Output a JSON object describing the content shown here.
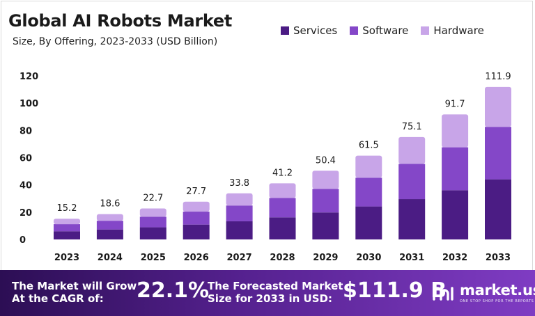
{
  "chart_data": {
    "type": "bar",
    "stacked": true,
    "title": "Global AI Robots Market",
    "subtitle": "Size, By Offering, 2023-2033 (USD Billion)",
    "categories": [
      "2023",
      "2024",
      "2025",
      "2026",
      "2027",
      "2028",
      "2029",
      "2030",
      "2031",
      "2032",
      "2033"
    ],
    "series": [
      {
        "name": "Services",
        "color": "#4b1c84",
        "values": [
          6.0,
          7.3,
          8.9,
          10.9,
          13.3,
          16.2,
          19.8,
          24.2,
          29.6,
          36.1,
          44.1
        ]
      },
      {
        "name": "Software",
        "color": "#8447c8",
        "values": [
          5.2,
          6.4,
          7.8,
          9.5,
          11.6,
          14.2,
          17.3,
          21.1,
          25.8,
          31.5,
          38.5
        ]
      },
      {
        "name": "Hardware",
        "color": "#c8a5e8",
        "values": [
          4.0,
          4.9,
          6.0,
          7.3,
          8.9,
          10.8,
          13.3,
          16.2,
          19.7,
          24.1,
          29.3
        ]
      }
    ],
    "totals": [
      "15.2",
      "18.6",
      "22.7",
      "27.7",
      "33.8",
      "41.2",
      "50.4",
      "61.5",
      "75.1",
      "91.7",
      "111.9"
    ],
    "ylim": [
      0,
      120
    ],
    "yticks": [
      "0",
      "20",
      "40",
      "60",
      "80",
      "100",
      "120"
    ],
    "grid": false,
    "legend_position": "top-right"
  },
  "footer": {
    "cagr_label_line1": "The Market will Grow",
    "cagr_label_line2": "At the CAGR of:",
    "cagr_value": "22.1%",
    "forecast_label_line1": "The Forecasted Market",
    "forecast_label_line2": "Size for 2033 in USD:",
    "forecast_value": "$111.9 B",
    "brand": "market.us",
    "brand_tagline": "ONE STOP SHOP FOR THE REPORTS"
  }
}
